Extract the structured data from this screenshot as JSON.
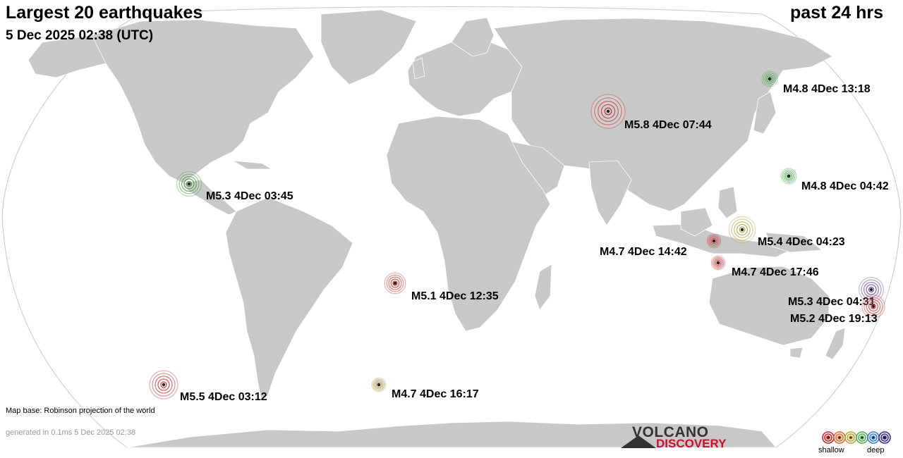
{
  "header": {
    "title": "Largest 20 earthquakes",
    "subtitle": "5 Dec 2025 02:38 (UTC)",
    "period": "past 24 hrs"
  },
  "footer": {
    "map_base": "Map base: Robinson projection of the world",
    "generated": "generated in 0.1ms  5 Dec 2025 02:38"
  },
  "logo": {
    "line1": "VOLCANO",
    "line2": "DISCOVERY"
  },
  "legend": {
    "shallow": "shallow",
    "deep": "deep",
    "colors": [
      "#c62828",
      "#d9662a",
      "#b9a23a",
      "#4caf50",
      "#3a7bd5",
      "#3b2a8c"
    ]
  },
  "colors": {
    "ocean": "#ffffff",
    "land": "#c8c8c8",
    "land_border": "#ffffff",
    "shallow_red": "#c62828",
    "intermediate_yellow": "#a89a3a",
    "green": "#3c9a3c",
    "deep_purple": "#5a3a8c"
  },
  "earthquakes": [
    {
      "label": "M5.8  4Dec 07:44",
      "magnitude": 5.8,
      "time": "4Dec 07:44",
      "depth_class": "shallow",
      "color": "#c62828"
    },
    {
      "label": "M4.8  4Dec 13:18",
      "magnitude": 4.8,
      "time": "4Dec 13:18",
      "depth_class": "intermediate",
      "color": "#3c9a3c"
    },
    {
      "label": "M4.8  4Dec 04:42",
      "magnitude": 4.8,
      "time": "4Dec 04:42",
      "depth_class": "intermediate",
      "color": "#3c9a3c"
    },
    {
      "label": "M5.3  4Dec 03:45",
      "magnitude": 5.3,
      "time": "4Dec 03:45",
      "depth_class": "intermediate",
      "color": "#2e8b2e"
    },
    {
      "label": "M5.4  4Dec 04:23",
      "magnitude": 5.4,
      "time": "4Dec 04:23",
      "depth_class": "medium",
      "color": "#a89a3a"
    },
    {
      "label": "M4.7  4Dec 14:42",
      "magnitude": 4.7,
      "time": "4Dec 14:42",
      "depth_class": "shallow",
      "color": "#c62828"
    },
    {
      "label": "M4.7  4Dec 17:46",
      "magnitude": 4.7,
      "time": "4Dec 17:46",
      "depth_class": "shallow",
      "color": "#c62828"
    },
    {
      "label": "M5.1  4Dec 12:35",
      "magnitude": 5.1,
      "time": "4Dec 12:35",
      "depth_class": "shallow",
      "color": "#c62828"
    },
    {
      "label": "M5.3  4Dec 04:31",
      "magnitude": 5.3,
      "time": "4Dec 04:31",
      "depth_class": "deep",
      "color": "#5a3a8c"
    },
    {
      "label": "M5.2  4Dec 19:13",
      "magnitude": 5.2,
      "time": "4Dec 19:13",
      "depth_class": "shallow",
      "color": "#c62828"
    },
    {
      "label": "M5.5  4Dec 03:12",
      "magnitude": 5.5,
      "time": "4Dec 03:12",
      "depth_class": "shallow",
      "color": "#c62828"
    },
    {
      "label": "M4.7  4Dec 16:17",
      "magnitude": 4.7,
      "time": "4Dec 16:17",
      "depth_class": "medium",
      "color": "#9a8a3a"
    }
  ]
}
